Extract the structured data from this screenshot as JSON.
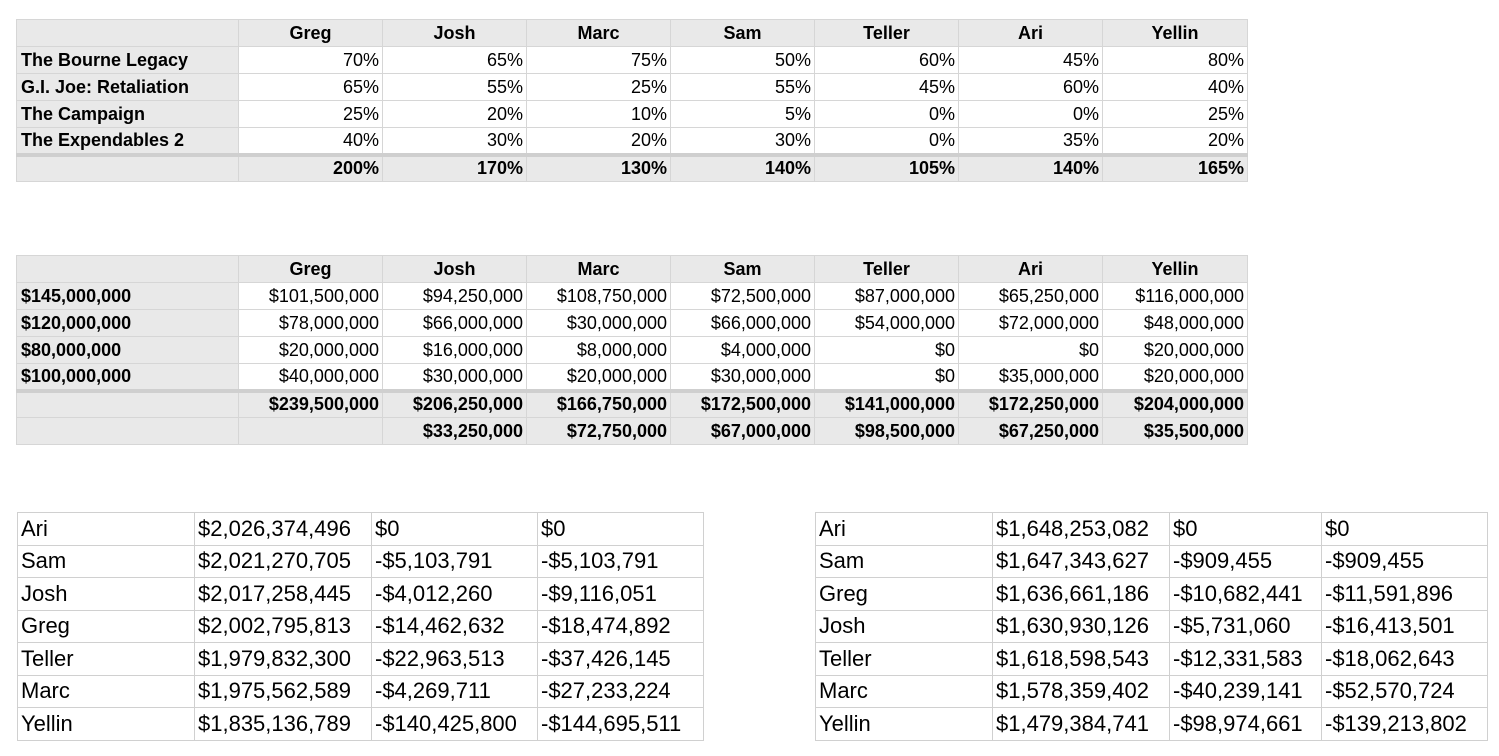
{
  "pct_table": {
    "headers": [
      "Greg",
      "Josh",
      "Marc",
      "Sam",
      "Teller",
      "Ari",
      "Yellin"
    ],
    "rows": [
      {
        "label": "The Bourne Legacy",
        "values": [
          "70%",
          "65%",
          "75%",
          "50%",
          "60%",
          "45%",
          "80%"
        ]
      },
      {
        "label": "G.I. Joe: Retaliation",
        "values": [
          "65%",
          "55%",
          "25%",
          "55%",
          "45%",
          "60%",
          "40%"
        ]
      },
      {
        "label": "The Campaign",
        "values": [
          "25%",
          "20%",
          "10%",
          "5%",
          "0%",
          "0%",
          "25%"
        ]
      },
      {
        "label": "The Expendables 2",
        "values": [
          "40%",
          "30%",
          "20%",
          "30%",
          "0%",
          "35%",
          "20%"
        ]
      }
    ],
    "totals": [
      "200%",
      "170%",
      "130%",
      "140%",
      "105%",
      "140%",
      "165%"
    ]
  },
  "money_table": {
    "headers": [
      "Greg",
      "Josh",
      "Marc",
      "Sam",
      "Teller",
      "Ari",
      "Yellin"
    ],
    "rows": [
      {
        "label": "$145,000,000",
        "values": [
          "$101,500,000",
          "$94,250,000",
          "$108,750,000",
          "$72,500,000",
          "$87,000,000",
          "$65,250,000",
          "$116,000,000"
        ]
      },
      {
        "label": "$120,000,000",
        "values": [
          "$78,000,000",
          "$66,000,000",
          "$30,000,000",
          "$66,000,000",
          "$54,000,000",
          "$72,000,000",
          "$48,000,000"
        ]
      },
      {
        "label": "$80,000,000",
        "values": [
          "$20,000,000",
          "$16,000,000",
          "$8,000,000",
          "$4,000,000",
          "$0",
          "$0",
          "$20,000,000"
        ]
      },
      {
        "label": "$100,000,000",
        "values": [
          "$40,000,000",
          "$30,000,000",
          "$20,000,000",
          "$30,000,000",
          "$0",
          "$35,000,000",
          "$20,000,000"
        ]
      }
    ],
    "totals": [
      "$239,500,000",
      "$206,250,000",
      "$166,750,000",
      "$172,500,000",
      "$141,000,000",
      "$172,250,000",
      "$204,000,000"
    ],
    "diffs": [
      "",
      "$33,250,000",
      "$72,750,000",
      "$67,000,000",
      "$98,500,000",
      "$67,250,000",
      "$35,500,000"
    ]
  },
  "rank_left": [
    [
      "Ari",
      "$2,026,374,496",
      "$0",
      "$0"
    ],
    [
      "Sam",
      "$2,021,270,705",
      "-$5,103,791",
      "-$5,103,791"
    ],
    [
      "Josh",
      "$2,017,258,445",
      "-$4,012,260",
      "-$9,116,051"
    ],
    [
      "Greg",
      "$2,002,795,813",
      "-$14,462,632",
      "-$18,474,892"
    ],
    [
      "Teller",
      "$1,979,832,300",
      "-$22,963,513",
      "-$37,426,145"
    ],
    [
      "Marc",
      "$1,975,562,589",
      "-$4,269,711",
      "-$27,233,224"
    ],
    [
      "Yellin",
      "$1,835,136,789",
      "-$140,425,800",
      "-$144,695,511"
    ]
  ],
  "rank_right": [
    [
      "Ari",
      "$1,648,253,082",
      "$0",
      "$0"
    ],
    [
      "Sam",
      "$1,647,343,627",
      "-$909,455",
      "-$909,455"
    ],
    [
      "Greg",
      "$1,636,661,186",
      "-$10,682,441",
      "-$11,591,896"
    ],
    [
      "Josh",
      "$1,630,930,126",
      "-$5,731,060",
      "-$16,413,501"
    ],
    [
      "Teller",
      "$1,618,598,543",
      "-$12,331,583",
      "-$18,062,643"
    ],
    [
      "Marc",
      "$1,578,359,402",
      "-$40,239,141",
      "-$52,570,724"
    ],
    [
      "Yellin",
      "$1,479,384,741",
      "-$98,974,661",
      "-$139,213,802"
    ]
  ]
}
